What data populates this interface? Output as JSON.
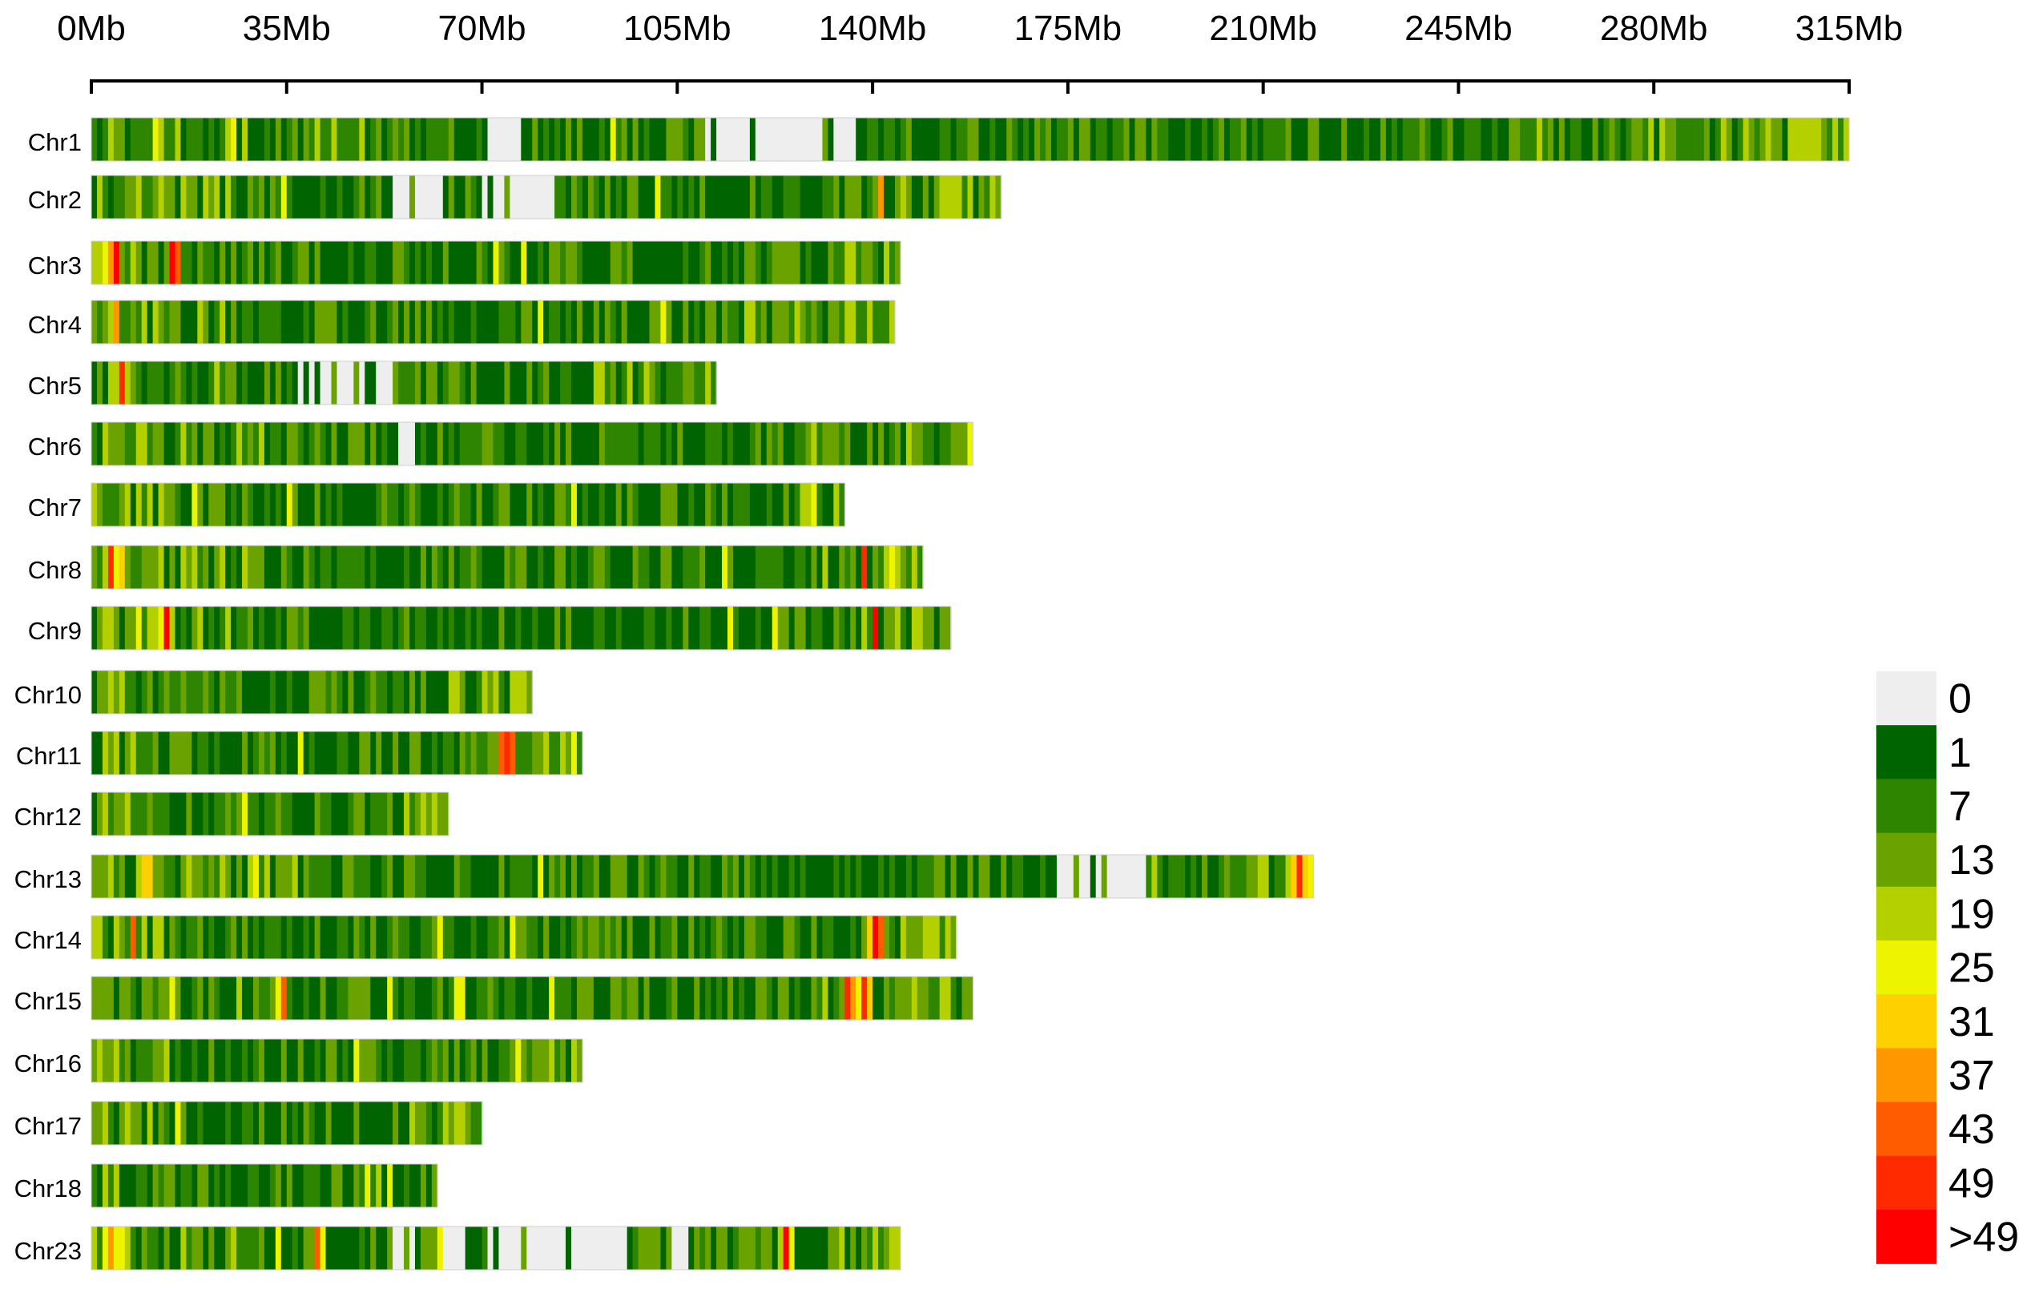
{
  "chart_data": {
    "type": "heatmap",
    "title": "",
    "subtitle": "",
    "xlabel": "",
    "ylabel": "",
    "x_unit": "Mb",
    "x_range": [
      0,
      315
    ],
    "bin_size_mb": 1,
    "x_ticks": [
      "0Mb",
      "35Mb",
      "70Mb",
      "105Mb",
      "140Mb",
      "175Mb",
      "210Mb",
      "245Mb",
      "280Mb",
      "315Mb"
    ],
    "x_tick_values": [
      0,
      35,
      70,
      105,
      140,
      175,
      210,
      245,
      280,
      315
    ],
    "legend_position": "bottom-right",
    "legend": {
      "labels": [
        "0",
        "1",
        "7",
        "13",
        "19",
        "25",
        "31",
        "37",
        "43",
        "49",
        ">49"
      ],
      "colors": [
        "#eeeeee",
        "#006400",
        "#2e8500",
        "#6aa300",
        "#b4d000",
        "#eef400",
        "#ffd000",
        "#ff9800",
        "#ff5c00",
        "#ff2a00",
        "#ff0000"
      ]
    },
    "chromosomes": [
      {
        "name": "Chr1",
        "length_mb": 315,
        "gaps": [
          [
            70,
            78
          ],
          [
            110,
            131
          ],
          [
            132,
            137
          ]
        ],
        "hot_regions": []
      },
      {
        "name": "Chr2",
        "length_mb": 163,
        "gaps": [
          [
            53,
            63
          ],
          [
            70,
            83
          ]
        ],
        "hot_regions": [
          [
            141,
            142
          ]
        ]
      },
      {
        "name": "Chr3",
        "length_mb": 145,
        "gaps": [],
        "hot_regions": [
          [
            2,
            5
          ],
          [
            14,
            16
          ]
        ]
      },
      {
        "name": "Chr4",
        "length_mb": 144,
        "gaps": [],
        "hot_regions": [
          [
            4,
            5
          ]
        ]
      },
      {
        "name": "Chr5",
        "length_mb": 112,
        "gaps": [
          [
            37,
            55
          ]
        ],
        "hot_regions": [
          [
            5,
            6
          ]
        ]
      },
      {
        "name": "Chr6",
        "length_mb": 158,
        "gaps": [
          [
            54,
            58
          ]
        ],
        "hot_regions": []
      },
      {
        "name": "Chr7",
        "length_mb": 135,
        "gaps": [],
        "hot_regions": []
      },
      {
        "name": "Chr8",
        "length_mb": 149,
        "gaps": [],
        "hot_regions": [
          [
            3,
            6
          ],
          [
            138,
            139
          ]
        ]
      },
      {
        "name": "Chr9",
        "length_mb": 154,
        "gaps": [],
        "hot_regions": [
          [
            12,
            14
          ],
          [
            140,
            141
          ]
        ]
      },
      {
        "name": "Chr10",
        "length_mb": 79,
        "gaps": [],
        "hot_regions": []
      },
      {
        "name": "Chr11",
        "length_mb": 88,
        "gaps": [],
        "hot_regions": [
          [
            73,
            76
          ]
        ]
      },
      {
        "name": "Chr12",
        "length_mb": 64,
        "gaps": [],
        "hot_regions": []
      },
      {
        "name": "Chr13",
        "length_mb": 219,
        "gaps": [
          [
            173,
            189
          ]
        ],
        "hot_regions": [
          [
            9,
            11
          ],
          [
            215,
            218
          ]
        ]
      },
      {
        "name": "Chr14",
        "length_mb": 155,
        "gaps": [],
        "hot_regions": [
          [
            139,
            142
          ],
          [
            7,
            8
          ]
        ]
      },
      {
        "name": "Chr15",
        "length_mb": 158,
        "gaps": [],
        "hot_regions": [
          [
            135,
            140
          ],
          [
            33,
            35
          ]
        ]
      },
      {
        "name": "Chr16",
        "length_mb": 88,
        "gaps": [],
        "hot_regions": []
      },
      {
        "name": "Chr17",
        "length_mb": 70,
        "gaps": [],
        "hot_regions": []
      },
      {
        "name": "Chr18",
        "length_mb": 62,
        "gaps": [],
        "hot_regions": []
      },
      {
        "name": "Chr23",
        "length_mb": 145,
        "gaps": [
          [
            54,
            58
          ],
          [
            63,
            67
          ],
          [
            71,
            96
          ],
          [
            101,
            107
          ]
        ],
        "hot_regions": [
          [
            2,
            6
          ],
          [
            40,
            42
          ],
          [
            124,
            126
          ]
        ]
      }
    ]
  }
}
